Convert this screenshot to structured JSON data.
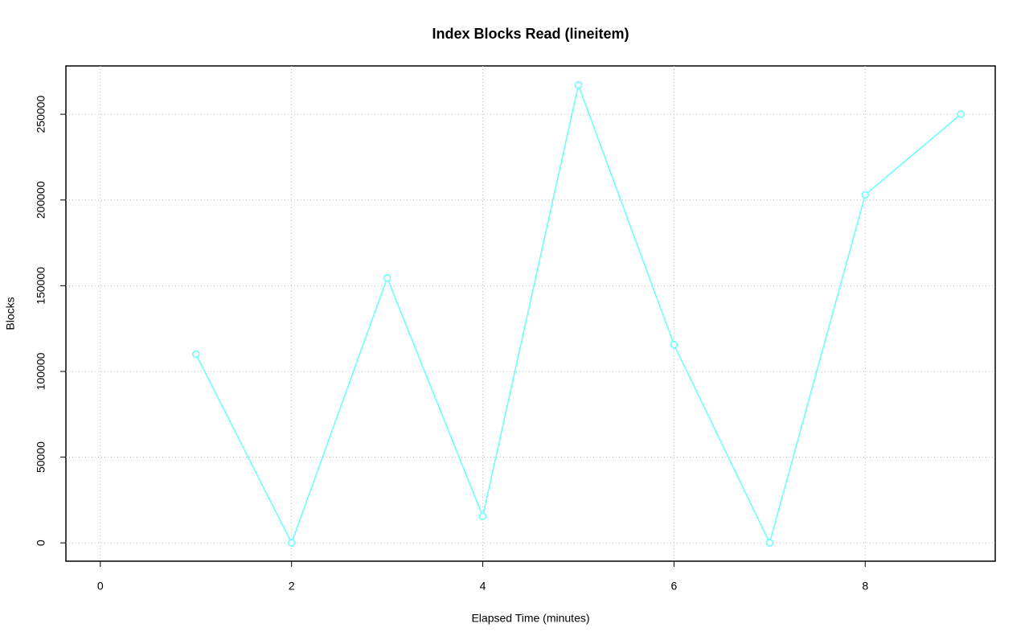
{
  "chart_data": {
    "type": "line",
    "title": "Index Blocks Read (lineitem)",
    "x_label": "Elapsed Time (minutes)",
    "y_label": "Blocks",
    "x": [
      1,
      2,
      3,
      4,
      5,
      6,
      7,
      8,
      9
    ],
    "series": [
      {
        "color": "#66ffff",
        "values": [
          110000,
          0,
          154500,
          15500,
          267000,
          115600,
          0,
          203000,
          250000
        ]
      }
    ],
    "xlim": [
      -0.36,
      9.36
    ],
    "xticks": [
      0,
      2,
      4,
      6,
      8
    ],
    "ylim": [
      -10700,
      278200
    ],
    "yticks": [
      0,
      50000,
      100000,
      150000,
      200000,
      250000
    ],
    "grid": true
  }
}
